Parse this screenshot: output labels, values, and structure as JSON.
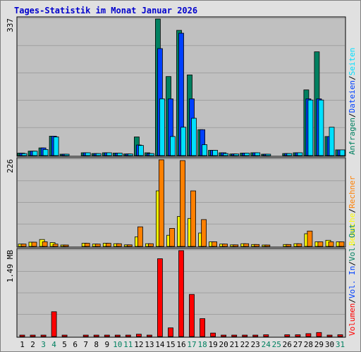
{
  "chart_data": {
    "type": "bar",
    "title": "Tages-Statistik im Monat Januar 2026",
    "categories": [
      "1",
      "2",
      "3",
      "4",
      "5",
      "6",
      "7",
      "8",
      "9",
      "10",
      "11",
      "12",
      "13",
      "14",
      "15",
      "16",
      "17",
      "18",
      "19",
      "20",
      "21",
      "22",
      "23",
      "24",
      "25",
      "26",
      "27",
      "28",
      "29",
      "30",
      "31"
    ],
    "weekend_days": [
      3,
      4,
      10,
      11,
      17,
      18,
      24,
      25,
      31
    ],
    "grid": true,
    "colors": {
      "title": "#0000cc",
      "weekday_label": "#000000",
      "weekend_label": "#008060",
      "anfragen": "#008060",
      "dateien": "#0040ff",
      "seiten": "#00e0ff",
      "besuche": "#ffff00",
      "rechner": "#ff8000",
      "vol_out": "#008060",
      "vol_in": "#0040ff",
      "volumen": "#ff0000",
      "plot_bg": "#c0c0c0",
      "page_bg": "#e0e0e0"
    },
    "panels": [
      {
        "name": "hits",
        "ymax_label": "337",
        "ymax": 337,
        "legend": [
          {
            "label": "Anfragen",
            "color": "#008060"
          },
          {
            "label": "/",
            "color": "#000000"
          },
          {
            "label": "Dateien",
            "color": "#0040ff"
          },
          {
            "label": "/",
            "color": "#000000"
          },
          {
            "label": "Seiten",
            "color": "#00e0ff"
          }
        ],
        "series": [
          {
            "name": "Anfragen",
            "color": "#008060",
            "values": [
              6,
              11,
              19,
              48,
              3,
              0,
              7,
              5,
              7,
              6,
              4,
              46,
              7,
              337,
              195,
              309,
              199,
              64,
              13,
              7,
              4,
              6,
              7,
              2,
              0,
              5,
              7,
              162,
              256,
              47,
              14
            ]
          },
          {
            "name": "Dateien",
            "color": "#0040ff",
            "values": [
              6,
              11,
              19,
              48,
              3,
              0,
              7,
              5,
              7,
              6,
              4,
              26,
              5,
              264,
              140,
              302,
              140,
              64,
              13,
              7,
              4,
              6,
              7,
              2,
              0,
              5,
              7,
              140,
              140,
              47,
              14
            ]
          },
          {
            "name": "Seiten",
            "color": "#00e0ff",
            "values": [
              5,
              11,
              15,
              46,
              3,
              0,
              7,
              5,
              7,
              6,
              4,
              25,
              5,
              140,
              47,
              70,
              92,
              27,
              13,
              5,
              4,
              6,
              7,
              2,
              0,
              5,
              7,
              137,
              137,
              70,
              14
            ]
          }
        ]
      },
      {
        "name": "visits",
        "ymax_label": "226",
        "ymax": 226,
        "legend": [
          {
            "label": "Besuche",
            "color": "#ffff00"
          },
          {
            "label": "/",
            "color": "#000000"
          },
          {
            "label": "Rechner",
            "color": "#ff8000"
          }
        ],
        "series": [
          {
            "name": "Besuche",
            "color": "#ffff00",
            "values": [
              6,
              11,
              18,
              10,
              2,
              0,
              8,
              6,
              8,
              7,
              4,
              25,
              7,
              145,
              29,
              78,
              73,
              35,
              12,
              6,
              4,
              7,
              5,
              2,
              0,
              5,
              7,
              33,
              12,
              16,
              12
            ]
          },
          {
            "name": "Rechner",
            "color": "#ff8000",
            "values": [
              6,
              11,
              12,
              6,
              2,
              0,
              8,
              6,
              8,
              7,
              4,
              51,
              7,
              226,
              47,
              224,
              145,
              70,
              12,
              6,
              4,
              7,
              5,
              2,
              0,
              5,
              7,
              40,
              12,
              12,
              12
            ]
          }
        ]
      },
      {
        "name": "volume",
        "ymax_label": "1.49 MB",
        "ymax": 1.49,
        "legend": [
          {
            "label": "Volumen",
            "color": "#ff0000"
          },
          {
            "label": "/",
            "color": "#000000"
          },
          {
            "label": "Vol. In",
            "color": "#0040ff"
          },
          {
            "label": "/",
            "color": "#000000"
          },
          {
            "label": "Vol. Out",
            "color": "#008060"
          }
        ],
        "series": [
          {
            "name": "Volumen",
            "color": "#ff0000",
            "values": [
              0.01,
              0.01,
              0.01,
              0.43,
              0.01,
              0,
              0.01,
              0.01,
              0.01,
              0.01,
              0.01,
              0.04,
              0.01,
              1.35,
              0.15,
              1.49,
              0.73,
              0.31,
              0.06,
              0.02,
              0.02,
              0.01,
              0.01,
              0.03,
              0,
              0.03,
              0.03,
              0.05,
              0.07,
              0.02,
              0.03
            ]
          }
        ]
      }
    ]
  }
}
